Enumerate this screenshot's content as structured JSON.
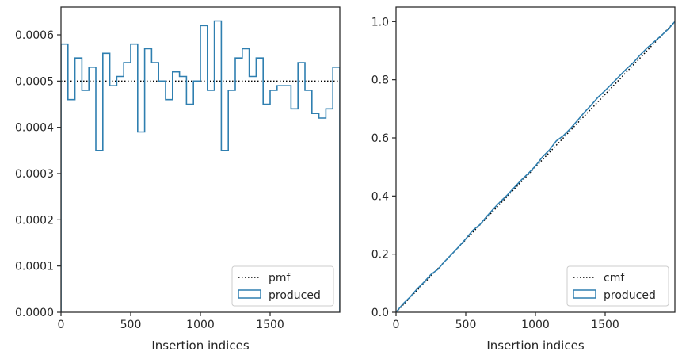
{
  "colors": {
    "produced": "#2f7fb0",
    "reference": "#000000",
    "axes": "#262626",
    "legend_border": "#cccccc"
  },
  "chart_data": [
    {
      "type": "histogram",
      "xlabel": "Insertion indices",
      "ylabel": "",
      "xlim": [
        0,
        2000
      ],
      "ylim": [
        0,
        0.00066
      ],
      "x_ticks": [
        0,
        500,
        1000,
        1500
      ],
      "x_tick_labels": [
        "0",
        "500",
        "1000",
        "1500"
      ],
      "y_ticks": [
        0,
        0.0001,
        0.0002,
        0.0003,
        0.0004,
        0.0005,
        0.0006
      ],
      "y_tick_labels": [
        "0.0000",
        "0.0001",
        "0.0002",
        "0.0003",
        "0.0004",
        "0.0005",
        "0.0006"
      ],
      "legend": {
        "placement": "lower-right",
        "entries": [
          "pmf",
          "produced"
        ]
      },
      "reference_line": {
        "name": "pmf",
        "y": 0.0005,
        "style": "dotted"
      },
      "bin_width": 50,
      "series": [
        {
          "name": "produced",
          "values": [
            0.00058,
            0.00046,
            0.00055,
            0.00048,
            0.00053,
            0.00035,
            0.00056,
            0.00049,
            0.00051,
            0.00054,
            0.00058,
            0.00039,
            0.00057,
            0.00054,
            0.0005,
            0.00046,
            0.00052,
            0.00051,
            0.00045,
            0.0005,
            0.00062,
            0.00048,
            0.00063,
            0.00035,
            0.00048,
            0.00055,
            0.00057,
            0.00051,
            0.00055,
            0.00045,
            0.00048,
            0.00049,
            0.00049,
            0.00044,
            0.00054,
            0.00048,
            0.00043,
            0.00042,
            0.00044,
            0.00053
          ]
        }
      ]
    },
    {
      "type": "line",
      "xlabel": "Insertion indices",
      "ylabel": "",
      "xlim": [
        0,
        2000
      ],
      "ylim": [
        0,
        1.05
      ],
      "x_ticks": [
        0,
        500,
        1000,
        1500
      ],
      "x_tick_labels": [
        "0",
        "500",
        "1000",
        "1500"
      ],
      "y_ticks": [
        0,
        0.2,
        0.4,
        0.6,
        0.8,
        1.0
      ],
      "y_tick_labels": [
        "0.0",
        "0.2",
        "0.4",
        "0.6",
        "0.8",
        "1.0"
      ],
      "legend": {
        "placement": "lower-right",
        "entries": [
          "cmf",
          "produced"
        ]
      },
      "reference_line": {
        "name": "cmf",
        "from": [
          0,
          0
        ],
        "to": [
          2000,
          1
        ],
        "style": "dotted"
      },
      "series": [
        {
          "name": "produced",
          "x": [
            0,
            50,
            100,
            150,
            200,
            250,
            300,
            350,
            400,
            450,
            500,
            550,
            600,
            650,
            700,
            750,
            800,
            850,
            900,
            950,
            1000,
            1050,
            1100,
            1150,
            1200,
            1250,
            1300,
            1350,
            1400,
            1450,
            1500,
            1550,
            1600,
            1650,
            1700,
            1750,
            1800,
            1850,
            1900,
            1950,
            2000
          ],
          "values": [
            0,
            0.029,
            0.052,
            0.0795,
            0.1035,
            0.13,
            0.1475,
            0.1755,
            0.2,
            0.2255,
            0.2525,
            0.2815,
            0.301,
            0.3295,
            0.3565,
            0.3815,
            0.4045,
            0.4305,
            0.456,
            0.4785,
            0.5035,
            0.5345,
            0.5585,
            0.59,
            0.6075,
            0.6315,
            0.659,
            0.6875,
            0.713,
            0.7405,
            0.763,
            0.787,
            0.8115,
            0.836,
            0.858,
            0.885,
            0.909,
            0.93,
            0.951,
            0.973,
            1.0
          ]
        }
      ]
    }
  ]
}
